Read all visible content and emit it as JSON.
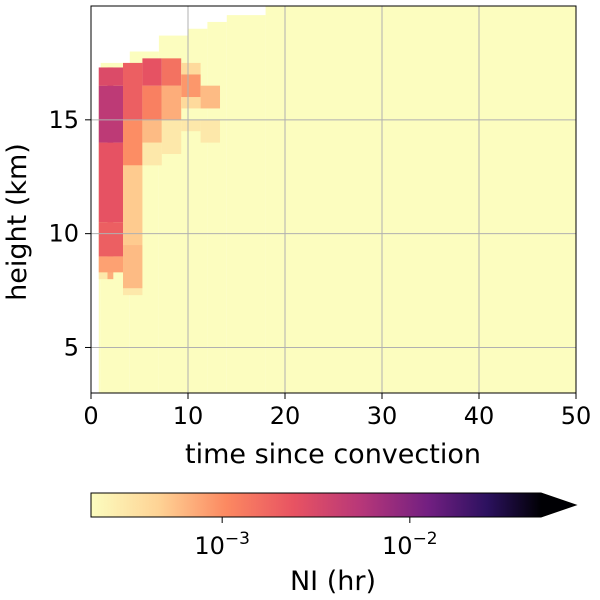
{
  "chart_data": {
    "type": "heatmap",
    "xlabel": "time since convection",
    "ylabel": "height (km)",
    "xlim": [
      0,
      50
    ],
    "ylim": [
      3,
      20
    ],
    "xticks": [
      0,
      10,
      20,
      30,
      40,
      50
    ],
    "yticks": [
      5,
      10,
      15
    ],
    "grid": true,
    "colorscale": "magma_r",
    "colorbar": {
      "label": "NI (hr)",
      "scale": "log",
      "range": [
        0.0002,
        0.05
      ],
      "ticks": [
        {
          "value": 0.001,
          "label": "10",
          "exp": "−3"
        },
        {
          "value": 0.01,
          "label": "10",
          "exp": "−2"
        }
      ],
      "extend": "max"
    },
    "background_value": 0.0002,
    "background_extent": [
      {
        "x": 1,
        "top": 16.5
      },
      {
        "x": 4,
        "top": 17.5
      },
      {
        "x": 7,
        "top": 18
      },
      {
        "x": 10,
        "top": 18.7
      },
      {
        "x": 12,
        "top": 19
      },
      {
        "x": 14,
        "top": 19.3
      },
      {
        "x": 18,
        "top": 19.6
      },
      {
        "x": 20,
        "top": 20
      },
      {
        "x": 50,
        "top": 20
      }
    ],
    "columns": [
      {
        "x0": 0.8,
        "x1": 1.7,
        "y_bottom": 8,
        "y_top": 17.3,
        "value": 0.0003
      },
      {
        "x0": 1.7,
        "x1": 2.3,
        "y_bottom": 8,
        "y_top": 9.5,
        "value": 0.0007
      },
      {
        "x0": 1.7,
        "x1": 2.3,
        "y_bottom": 9.5,
        "y_top": 11,
        "value": 0.0015
      },
      {
        "x0": 1.7,
        "x1": 2.3,
        "y_bottom": 11,
        "y_top": 16,
        "value": 0.003
      },
      {
        "x0": 1.7,
        "x1": 2.3,
        "y_bottom": 16,
        "y_top": 17.3,
        "value": 0.004
      },
      {
        "x0": 0.8,
        "x1": 3.3,
        "y_bottom": 8.3,
        "y_top": 9,
        "value": 0.0008
      },
      {
        "x0": 0.8,
        "x1": 3.3,
        "y_bottom": 9,
        "y_top": 10.5,
        "value": 0.002
      },
      {
        "x0": 0.8,
        "x1": 3.3,
        "y_bottom": 10.5,
        "y_top": 14,
        "value": 0.0025
      },
      {
        "x0": 0.8,
        "x1": 3.3,
        "y_bottom": 14,
        "y_top": 16.5,
        "value": 0.005
      },
      {
        "x0": 0.8,
        "x1": 3.3,
        "y_bottom": 16.5,
        "y_top": 17.3,
        "value": 0.003
      },
      {
        "x0": 3.3,
        "x1": 5.3,
        "y_bottom": 7.3,
        "y_top": 7.6,
        "value": 0.0003
      },
      {
        "x0": 3.3,
        "x1": 5.3,
        "y_bottom": 7.6,
        "y_top": 9.5,
        "value": 0.0006
      },
      {
        "x0": 3.3,
        "x1": 5.3,
        "y_bottom": 9.5,
        "y_top": 13,
        "value": 0.0005
      },
      {
        "x0": 3.3,
        "x1": 5.3,
        "y_bottom": 13,
        "y_top": 15,
        "value": 0.001
      },
      {
        "x0": 3.3,
        "x1": 5.3,
        "y_bottom": 15,
        "y_top": 17.5,
        "value": 0.002
      },
      {
        "x0": 5.3,
        "x1": 7.3,
        "y_bottom": 13,
        "y_top": 14,
        "value": 0.0003
      },
      {
        "x0": 5.3,
        "x1": 7.3,
        "y_bottom": 14,
        "y_top": 15,
        "value": 0.0006
      },
      {
        "x0": 5.3,
        "x1": 7.3,
        "y_bottom": 15,
        "y_top": 16.5,
        "value": 0.0012
      },
      {
        "x0": 5.3,
        "x1": 7.3,
        "y_bottom": 16.5,
        "y_top": 17.7,
        "value": 0.0025
      },
      {
        "x0": 7.3,
        "x1": 9.3,
        "y_bottom": 13.5,
        "y_top": 15,
        "value": 0.0003
      },
      {
        "x0": 7.3,
        "x1": 9.3,
        "y_bottom": 15,
        "y_top": 16.5,
        "value": 0.0007
      },
      {
        "x0": 7.3,
        "x1": 9.3,
        "y_bottom": 16.5,
        "y_top": 17.7,
        "value": 0.0015
      },
      {
        "x0": 9.3,
        "x1": 11.3,
        "y_bottom": 15.5,
        "y_top": 16,
        "value": 0.0004
      },
      {
        "x0": 9.3,
        "x1": 11.3,
        "y_bottom": 16,
        "y_top": 17,
        "value": 0.0009
      },
      {
        "x0": 9.3,
        "x1": 11.3,
        "y_bottom": 17,
        "y_top": 17.5,
        "value": 0.0004
      },
      {
        "x0": 9.3,
        "x1": 11.3,
        "y_bottom": 14.5,
        "y_top": 15,
        "value": 0.0003
      },
      {
        "x0": 11.3,
        "x1": 13.3,
        "y_bottom": 15.5,
        "y_top": 16.5,
        "value": 0.0006
      },
      {
        "x0": 11.3,
        "x1": 13.3,
        "y_bottom": 14,
        "y_top": 15,
        "value": 0.0003
      }
    ]
  }
}
